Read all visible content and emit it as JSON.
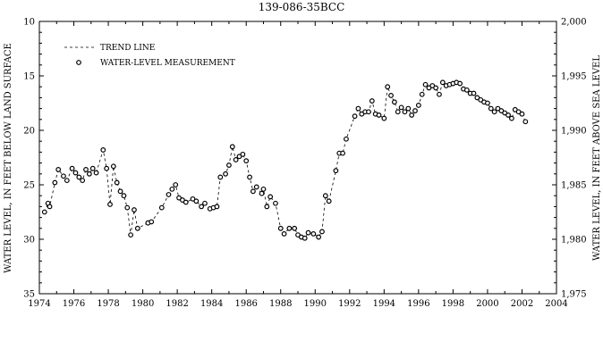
{
  "chart_data": {
    "type": "line",
    "title": "139-086-35BCC",
    "ylabel_left": "WATER LEVEL, IN FEET BELOW LAND SURFACE",
    "ylabel_right": "WATER LEVEL, IN FEET ABOVE SEA LEVEL",
    "xlim": [
      1974,
      2004
    ],
    "ylim_left": [
      10,
      35
    ],
    "ylim_left_inverted": true,
    "ylim_right": [
      1975,
      2000
    ],
    "x_ticks": [
      "1974",
      "1976",
      "1978",
      "1980",
      "1982",
      "1984",
      "1986",
      "1988",
      "1990",
      "1992",
      "1994",
      "1996",
      "1998",
      "2000",
      "2002",
      "2004"
    ],
    "y_left_ticks": [
      "10",
      "15",
      "20",
      "25",
      "30",
      "35"
    ],
    "y_right_ticks": [
      "2,000",
      "1,995",
      "1,990",
      "1,985",
      "1,980",
      "1,975"
    ],
    "legend_position": "top-left",
    "grid": false,
    "series": [
      {
        "name": "TREND LINE",
        "style": "dashed"
      },
      {
        "name": "WATER-LEVEL MEASUREMENT",
        "style": "markers",
        "points": [
          [
            1974.3,
            27.5
          ],
          [
            1974.5,
            26.7
          ],
          [
            1974.6,
            27.0
          ],
          [
            1974.9,
            24.8
          ],
          [
            1975.1,
            23.6
          ],
          [
            1975.4,
            24.2
          ],
          [
            1975.6,
            24.6
          ],
          [
            1975.9,
            23.5
          ],
          [
            1976.1,
            23.9
          ],
          [
            1976.3,
            24.3
          ],
          [
            1976.5,
            24.6
          ],
          [
            1976.7,
            23.6
          ],
          [
            1976.9,
            24.0
          ],
          [
            1977.1,
            23.5
          ],
          [
            1977.3,
            23.9
          ],
          [
            1977.7,
            21.8
          ],
          [
            1977.9,
            23.5
          ],
          [
            1978.1,
            26.8
          ],
          [
            1978.3,
            23.3
          ],
          [
            1978.5,
            24.8
          ],
          [
            1978.7,
            25.6
          ],
          [
            1978.9,
            26.0
          ],
          [
            1979.1,
            27.1
          ],
          [
            1979.3,
            29.6
          ],
          [
            1979.5,
            27.3
          ],
          [
            1979.7,
            29.0
          ],
          [
            1980.3,
            28.5
          ],
          [
            1980.5,
            28.4
          ],
          [
            1981.1,
            27.1
          ],
          [
            1981.5,
            25.9
          ],
          [
            1981.7,
            25.4
          ],
          [
            1981.9,
            25.0
          ],
          [
            1982.1,
            26.2
          ],
          [
            1982.3,
            26.4
          ],
          [
            1982.5,
            26.6
          ],
          [
            1982.9,
            26.3
          ],
          [
            1983.1,
            26.5
          ],
          [
            1983.4,
            27.0
          ],
          [
            1983.6,
            26.7
          ],
          [
            1983.9,
            27.2
          ],
          [
            1984.1,
            27.1
          ],
          [
            1984.3,
            27.0
          ],
          [
            1984.5,
            24.3
          ],
          [
            1984.8,
            24.0
          ],
          [
            1985.0,
            23.2
          ],
          [
            1985.2,
            21.5
          ],
          [
            1985.4,
            22.7
          ],
          [
            1985.6,
            22.4
          ],
          [
            1985.8,
            22.2
          ],
          [
            1986.0,
            22.8
          ],
          [
            1986.2,
            24.3
          ],
          [
            1986.4,
            25.6
          ],
          [
            1986.6,
            25.2
          ],
          [
            1986.9,
            25.8
          ],
          [
            1987.0,
            25.4
          ],
          [
            1987.2,
            27.0
          ],
          [
            1987.4,
            26.1
          ],
          [
            1987.7,
            26.7
          ],
          [
            1988.0,
            29.0
          ],
          [
            1988.2,
            29.5
          ],
          [
            1988.5,
            29.0
          ],
          [
            1988.8,
            29.0
          ],
          [
            1989.0,
            29.6
          ],
          [
            1989.2,
            29.8
          ],
          [
            1989.4,
            29.9
          ],
          [
            1989.6,
            29.4
          ],
          [
            1989.9,
            29.5
          ],
          [
            1990.2,
            29.8
          ],
          [
            1990.4,
            29.3
          ],
          [
            1990.6,
            26.0
          ],
          [
            1990.8,
            26.5
          ],
          [
            1991.2,
            23.7
          ],
          [
            1991.4,
            22.1
          ],
          [
            1991.6,
            22.1
          ],
          [
            1991.8,
            20.8
          ],
          [
            1992.3,
            18.7
          ],
          [
            1992.5,
            18.0
          ],
          [
            1992.7,
            18.5
          ],
          [
            1992.9,
            18.3
          ],
          [
            1993.1,
            18.3
          ],
          [
            1993.3,
            17.3
          ],
          [
            1993.5,
            18.5
          ],
          [
            1993.7,
            18.6
          ],
          [
            1994.0,
            18.9
          ],
          [
            1994.2,
            16.0
          ],
          [
            1994.4,
            16.8
          ],
          [
            1994.6,
            17.4
          ],
          [
            1994.8,
            18.3
          ],
          [
            1995.0,
            17.9
          ],
          [
            1995.2,
            18.3
          ],
          [
            1995.4,
            18.0
          ],
          [
            1995.6,
            18.6
          ],
          [
            1995.8,
            18.2
          ],
          [
            1996.0,
            17.7
          ],
          [
            1996.2,
            16.7
          ],
          [
            1996.4,
            15.8
          ],
          [
            1996.6,
            16.1
          ],
          [
            1996.8,
            15.9
          ],
          [
            1997.0,
            16.1
          ],
          [
            1997.2,
            16.7
          ],
          [
            1997.4,
            15.6
          ],
          [
            1997.6,
            15.9
          ],
          [
            1997.8,
            15.8
          ],
          [
            1998.0,
            15.7
          ],
          [
            1998.2,
            15.6
          ],
          [
            1998.4,
            15.7
          ],
          [
            1998.6,
            16.2
          ],
          [
            1998.8,
            16.3
          ],
          [
            1999.0,
            16.6
          ],
          [
            1999.2,
            16.6
          ],
          [
            1999.4,
            17.0
          ],
          [
            1999.6,
            17.2
          ],
          [
            1999.8,
            17.4
          ],
          [
            2000.0,
            17.5
          ],
          [
            2000.2,
            18.0
          ],
          [
            2000.4,
            18.3
          ],
          [
            2000.6,
            18.0
          ],
          [
            2000.8,
            18.2
          ],
          [
            2001.0,
            18.4
          ],
          [
            2001.2,
            18.6
          ],
          [
            2001.4,
            18.9
          ],
          [
            2001.6,
            18.1
          ],
          [
            2001.8,
            18.3
          ],
          [
            2002.0,
            18.5
          ],
          [
            2002.2,
            19.2
          ]
        ]
      }
    ]
  }
}
